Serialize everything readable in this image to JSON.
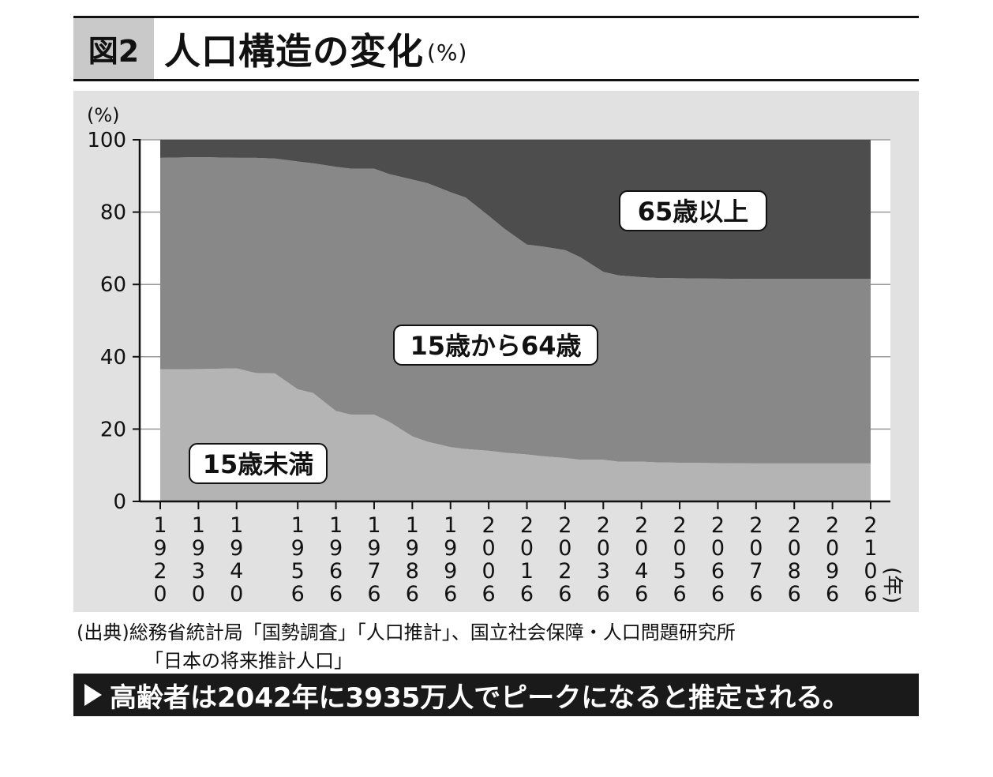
{
  "header": {
    "figure_number": "図2",
    "title": "人口構造の変化",
    "title_unit": "(%)"
  },
  "source": {
    "line1": "(出典)総務省統計局「国勢調査」「人口推計」、国立社会保障・人口問題研究所",
    "line2": "「日本の将来推計人口」"
  },
  "banner": {
    "text": "高齢者は2042年に3935万人でピークになると推定される。"
  },
  "colors": {
    "under15": "#b4b4b4",
    "age15_64": "#888888",
    "age65plus": "#4d4d4d",
    "panel": "#e1e1e1"
  },
  "chart_data": {
    "type": "area",
    "stacked": true,
    "ylabel": "(%)",
    "xunit": "(年)",
    "ylim": [
      0,
      100
    ],
    "yticks": [
      0,
      20,
      40,
      60,
      80,
      100
    ],
    "grid": true,
    "xticks": [
      1920,
      1930,
      1940,
      1956,
      1966,
      1976,
      1986,
      1996,
      2006,
      2016,
      2026,
      2036,
      2046,
      2056,
      2066,
      2076,
      2086,
      2096,
      2106
    ],
    "xtick_labels": [
      "1920",
      "1930",
      "1940",
      "1956",
      "1966",
      "1976",
      "1986",
      "1996",
      "2006",
      "2016",
      "2026",
      "2036",
      "2046",
      "2056",
      "2066",
      "2076",
      "2086",
      "2096",
      "2106"
    ],
    "x": [
      1920,
      1930,
      1940,
      1945,
      1950,
      1956,
      1960,
      1966,
      1970,
      1976,
      1980,
      1986,
      1990,
      1996,
      2000,
      2006,
      2010,
      2016,
      2020,
      2026,
      2030,
      2036,
      2040,
      2046,
      2050,
      2056,
      2066,
      2076,
      2086,
      2096,
      2106
    ],
    "series": [
      {
        "name": "15歳未満",
        "label": "15歳未満",
        "values": [
          36.5,
          36.6,
          36.8,
          35.5,
          35.4,
          31,
          30,
          25,
          24,
          24,
          22,
          18,
          16.5,
          15,
          14.5,
          14,
          13.5,
          13,
          12.5,
          12,
          11.5,
          11.5,
          11,
          11,
          10.8,
          10.7,
          10.6,
          10.5,
          10.5,
          10.5,
          10.5
        ]
      },
      {
        "name": "15歳から64歳",
        "label": "15歳から64歳",
        "values": [
          58.5,
          58.6,
          58.2,
          59.5,
          59.4,
          63,
          63.5,
          67.5,
          68,
          68,
          68.5,
          71,
          71.5,
          70.5,
          69.5,
          65,
          62,
          58,
          58,
          57.5,
          56,
          52,
          51.5,
          51,
          51,
          51,
          51,
          51,
          51,
          51,
          51
        ]
      },
      {
        "name": "65歳以上",
        "label": "65歳以上",
        "values": [
          5,
          4.8,
          5,
          5,
          5.2,
          6,
          6.5,
          7.5,
          8,
          8,
          9.5,
          11,
          12,
          14.5,
          16,
          21,
          24.5,
          29,
          29.5,
          30.5,
          32.5,
          36.5,
          37.5,
          38,
          38.2,
          38.3,
          38.4,
          38.5,
          38.5,
          38.5,
          38.5
        ]
      }
    ],
    "annotations": [
      {
        "series": "65歳以上",
        "text": "65歳以上"
      },
      {
        "series": "15歳から64歳",
        "text": "15歳から64歳"
      },
      {
        "series": "15歳未満",
        "text": "15歳未満"
      }
    ]
  }
}
